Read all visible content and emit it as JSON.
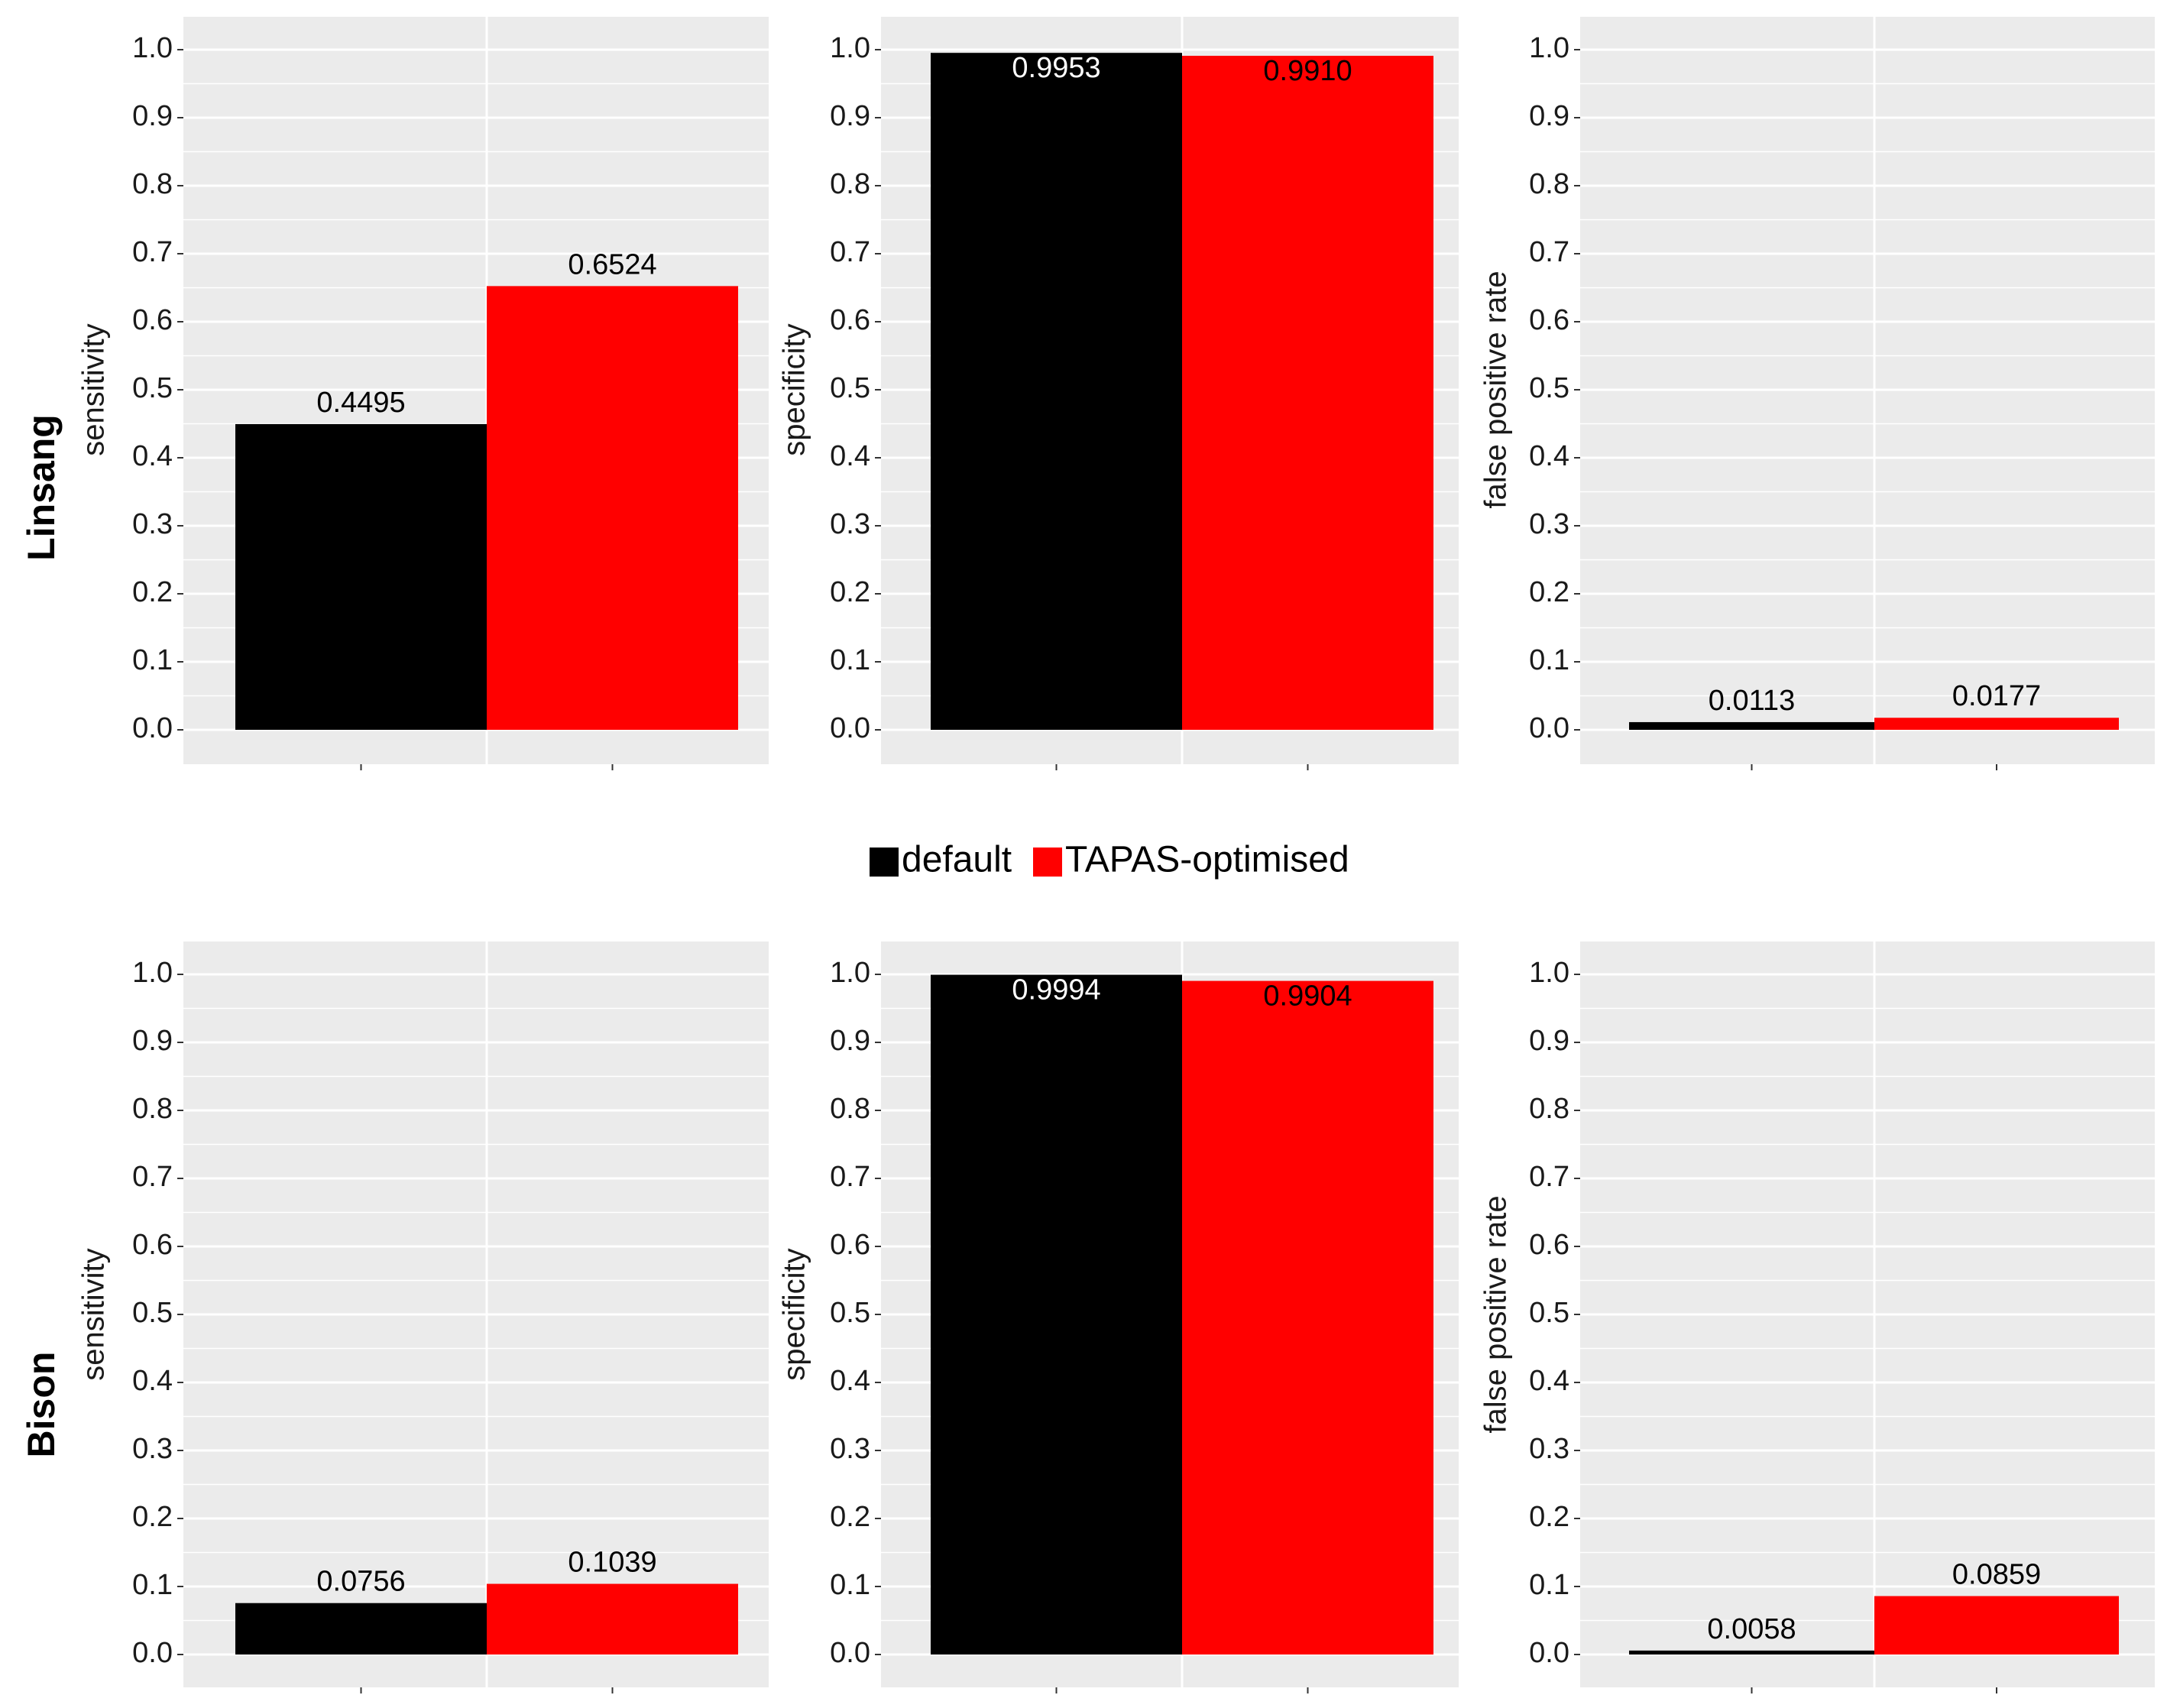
{
  "chart_data": {
    "type": "bar",
    "rows": [
      {
        "label": "Linsang",
        "panels": [
          {
            "ylabel": "sensitivity",
            "ylim": [
              0.0,
              1.0
            ],
            "yticks": [
              "0.0",
              "0.1",
              "0.2",
              "0.3",
              "0.4",
              "0.5",
              "0.6",
              "0.7",
              "0.8",
              "0.9",
              "1.0"
            ],
            "series": [
              {
                "name": "default",
                "value": 0.4495,
                "label": "0.4495"
              },
              {
                "name": "TAPAS-optimised",
                "value": 0.6524,
                "label": "0.6524"
              }
            ]
          },
          {
            "ylabel": "specificity",
            "ylim": [
              0.0,
              1.0
            ],
            "yticks": [
              "0.0",
              "0.1",
              "0.2",
              "0.3",
              "0.4",
              "0.5",
              "0.6",
              "0.7",
              "0.8",
              "0.9",
              "1.0"
            ],
            "series": [
              {
                "name": "default",
                "value": 0.9953,
                "label": "0.9953"
              },
              {
                "name": "TAPAS-optimised",
                "value": 0.991,
                "label": "0.9910"
              }
            ]
          },
          {
            "ylabel": "false positive rate",
            "ylim": [
              0.0,
              1.0
            ],
            "yticks": [
              "0.0",
              "0.1",
              "0.2",
              "0.3",
              "0.4",
              "0.5",
              "0.6",
              "0.7",
              "0.8",
              "0.9",
              "1.0"
            ],
            "series": [
              {
                "name": "default",
                "value": 0.0113,
                "label": "0.0113"
              },
              {
                "name": "TAPAS-optimised",
                "value": 0.0177,
                "label": "0.0177"
              }
            ]
          }
        ]
      },
      {
        "label": "Bison",
        "panels": [
          {
            "ylabel": "sensitivity",
            "ylim": [
              0.0,
              1.0
            ],
            "yticks": [
              "0.0",
              "0.1",
              "0.2",
              "0.3",
              "0.4",
              "0.5",
              "0.6",
              "0.7",
              "0.8",
              "0.9",
              "1.0"
            ],
            "series": [
              {
                "name": "default",
                "value": 0.0756,
                "label": "0.0756"
              },
              {
                "name": "TAPAS-optimised",
                "value": 0.1039,
                "label": "0.1039"
              }
            ]
          },
          {
            "ylabel": "specificity",
            "ylim": [
              0.0,
              1.0
            ],
            "yticks": [
              "0.0",
              "0.1",
              "0.2",
              "0.3",
              "0.4",
              "0.5",
              "0.6",
              "0.7",
              "0.8",
              "0.9",
              "1.0"
            ],
            "series": [
              {
                "name": "default",
                "value": 0.9994,
                "label": "0.9994"
              },
              {
                "name": "TAPAS-optimised",
                "value": 0.9904,
                "label": "0.9904"
              }
            ]
          },
          {
            "ylabel": "false positive rate",
            "ylim": [
              0.0,
              1.0
            ],
            "yticks": [
              "0.0",
              "0.1",
              "0.2",
              "0.3",
              "0.4",
              "0.5",
              "0.6",
              "0.7",
              "0.8",
              "0.9",
              "1.0"
            ],
            "series": [
              {
                "name": "default",
                "value": 0.0058,
                "label": "0.0058"
              },
              {
                "name": "TAPAS-optimised",
                "value": 0.0859,
                "label": "0.0859"
              }
            ]
          }
        ]
      }
    ],
    "legend": {
      "position": "center",
      "entries": [
        {
          "name": "default",
          "label": "default",
          "color": "#000000"
        },
        {
          "name": "TAPAS-optimised",
          "label": "TAPAS-optimised",
          "color": "#ff0000"
        }
      ]
    },
    "colors": {
      "default": "#000000",
      "tapas": "#ff0000",
      "panel_bg": "#ebebeb",
      "grid": "#ffffff",
      "label_inside_default": "#ffffff",
      "label_inside_tapas": "#000000"
    }
  }
}
